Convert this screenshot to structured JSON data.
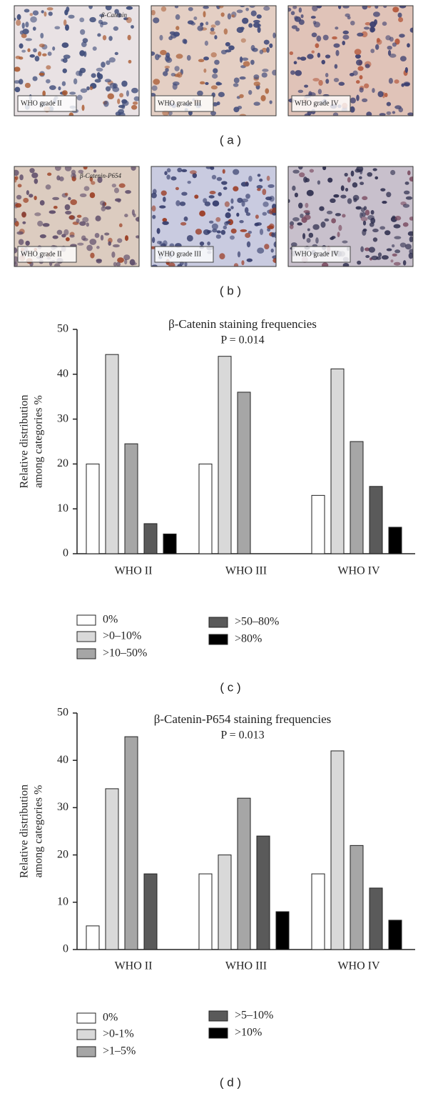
{
  "panels": [
    {
      "label": "( a )",
      "images": [
        {
          "caption": "WHO grade II",
          "stain": "β-Catenin"
        },
        {
          "caption": "WHO grade III"
        },
        {
          "caption": "WHO grade IV"
        }
      ]
    },
    {
      "label": "( b )",
      "images": [
        {
          "caption": "WHO grade II",
          "stain": "β-Catenin-P654"
        },
        {
          "caption": "WHO grade III"
        },
        {
          "caption": "WHO grade IV"
        }
      ]
    }
  ],
  "chart_data": [
    {
      "type": "bar",
      "panel_label": "( c )",
      "title": "β-Catenin staining frequencies",
      "subtitle": "P = 0.014",
      "ylabel": [
        "Relative distribution",
        "among categories %"
      ],
      "categories": [
        "WHO II",
        "WHO III",
        "WHO IV"
      ],
      "series": [
        {
          "name": "0%",
          "color": "#ffffff",
          "values": [
            20,
            20,
            13
          ]
        },
        {
          "name": ">0–10%",
          "color": "#d9d9d9",
          "values": [
            44.4,
            44,
            41.2
          ]
        },
        {
          "name": ">10–50%",
          "color": "#a6a6a6",
          "values": [
            24.5,
            36,
            25
          ]
        },
        {
          "name": ">50–80%",
          "color": "#5a5a5a",
          "values": [
            6.7,
            0,
            15
          ]
        },
        {
          "name": ">80%",
          "color": "#000000",
          "values": [
            4.4,
            0,
            5.9
          ]
        }
      ],
      "ylim": [
        0,
        50
      ],
      "yticks": [
        0,
        10,
        20,
        30,
        40,
        50
      ]
    },
    {
      "type": "bar",
      "panel_label": "( d )",
      "title": "β-Catenin-P654 staining frequencies",
      "subtitle": "P = 0.013",
      "ylabel": [
        "Relative distribution",
        "among categories %"
      ],
      "categories": [
        "WHO II",
        "WHO III",
        "WHO IV"
      ],
      "series": [
        {
          "name": "0%",
          "color": "#ffffff",
          "values": [
            5,
            16,
            16
          ]
        },
        {
          "name": ">0-1%",
          "color": "#d9d9d9",
          "values": [
            34,
            20,
            42
          ]
        },
        {
          "name": ">1–5%",
          "color": "#a6a6a6",
          "values": [
            45,
            32,
            22
          ]
        },
        {
          "name": ">5–10%",
          "color": "#5a5a5a",
          "values": [
            16,
            24,
            13
          ]
        },
        {
          "name": ">10%",
          "color": "#000000",
          "values": [
            0,
            8,
            6.2
          ]
        }
      ],
      "ylim": [
        0,
        50
      ],
      "yticks": [
        0,
        10,
        20,
        30,
        40,
        50
      ]
    }
  ]
}
